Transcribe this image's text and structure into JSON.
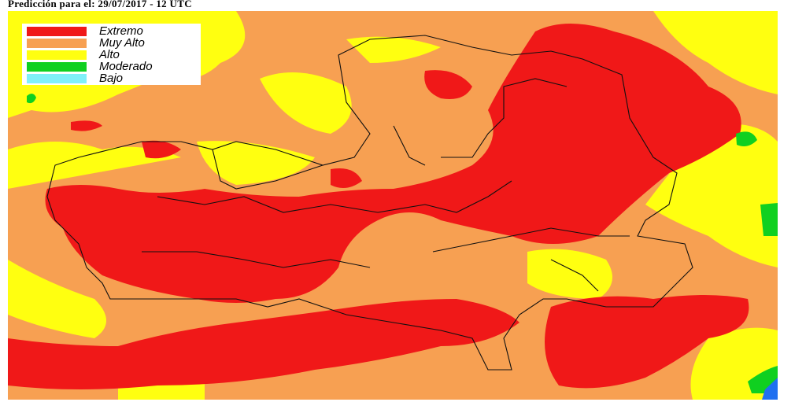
{
  "header": {
    "title": "Predicción para el: 29/07/2017 - 12 UTC"
  },
  "legend": {
    "items": [
      {
        "label": "Extremo",
        "color": "#f01818"
      },
      {
        "label": "Muy Alto",
        "color": "#f7a052"
      },
      {
        "label": "Alto",
        "color": "#ffff10"
      },
      {
        "label": "Moderado",
        "color": "#10d020"
      },
      {
        "label": "Bajo",
        "color": "#80f0f8"
      }
    ]
  }
}
